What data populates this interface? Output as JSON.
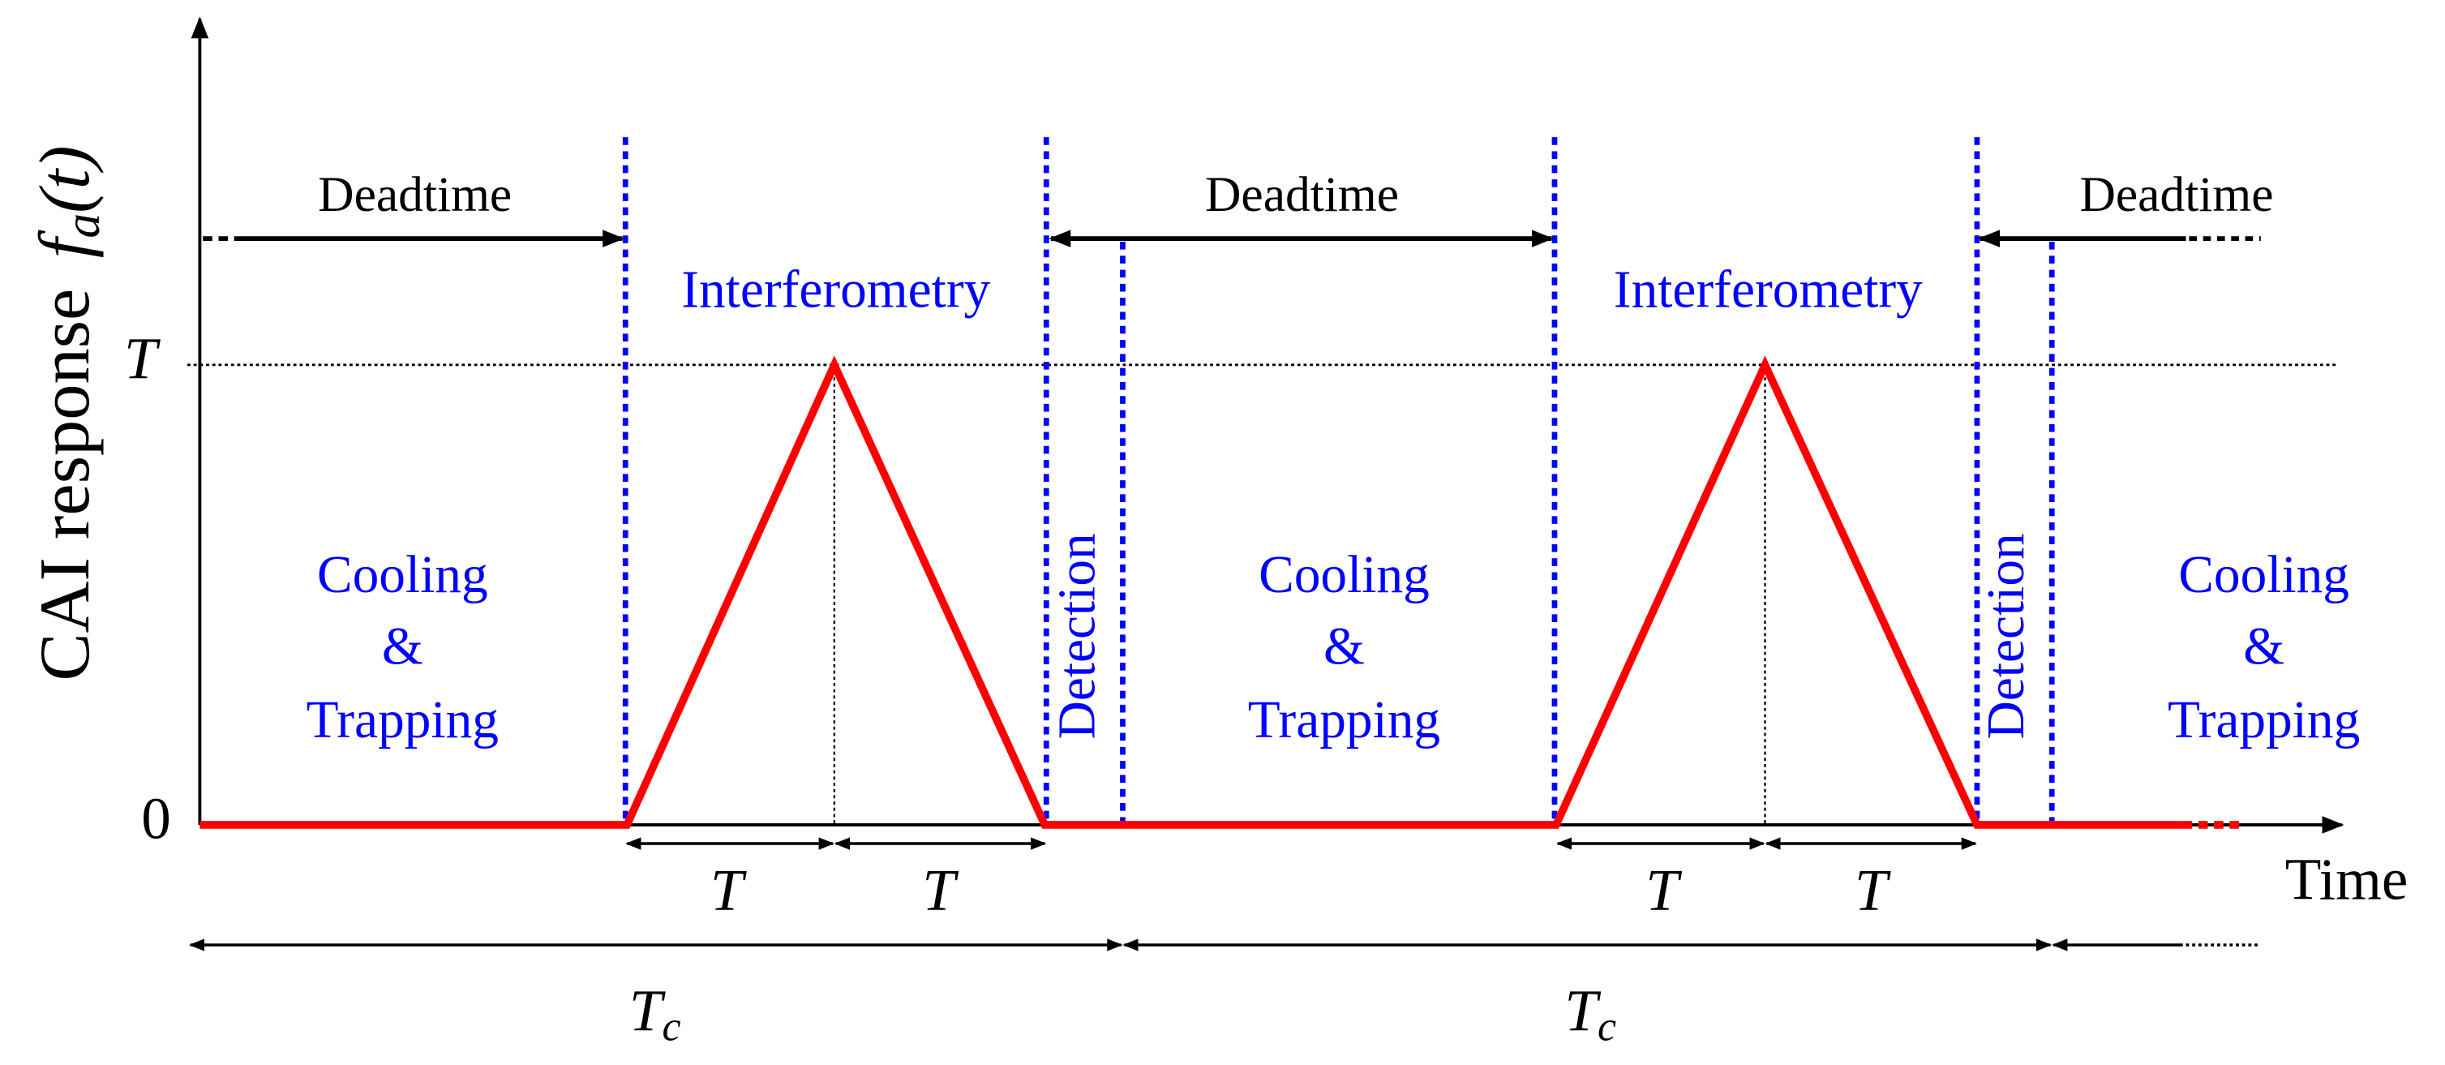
{
  "y_axis": {
    "label": "CAI response",
    "symbol": "f",
    "subscript": "a",
    "argument": "(t)",
    "ticks": [
      "0",
      "T"
    ]
  },
  "x_axis": {
    "label": "Time"
  },
  "deadtime_labels": [
    "Deadtime",
    "Deadtime",
    "Deadtime"
  ],
  "interferometry_labels": [
    "Interferometry",
    "Interferometry"
  ],
  "cooling_labels": [
    [
      "Cooling",
      "&",
      "Trapping"
    ],
    [
      "Cooling",
      "&",
      "Trapping"
    ],
    [
      "Cooling",
      "&",
      "Trapping"
    ]
  ],
  "detection_labels": [
    "Detection",
    "Detection"
  ],
  "interval_labels": [
    "T",
    "T",
    "T",
    "T"
  ],
  "cycle_labels": [
    {
      "symbol": "T",
      "subscript": "c"
    },
    {
      "symbol": "T",
      "subscript": "c"
    }
  ]
}
